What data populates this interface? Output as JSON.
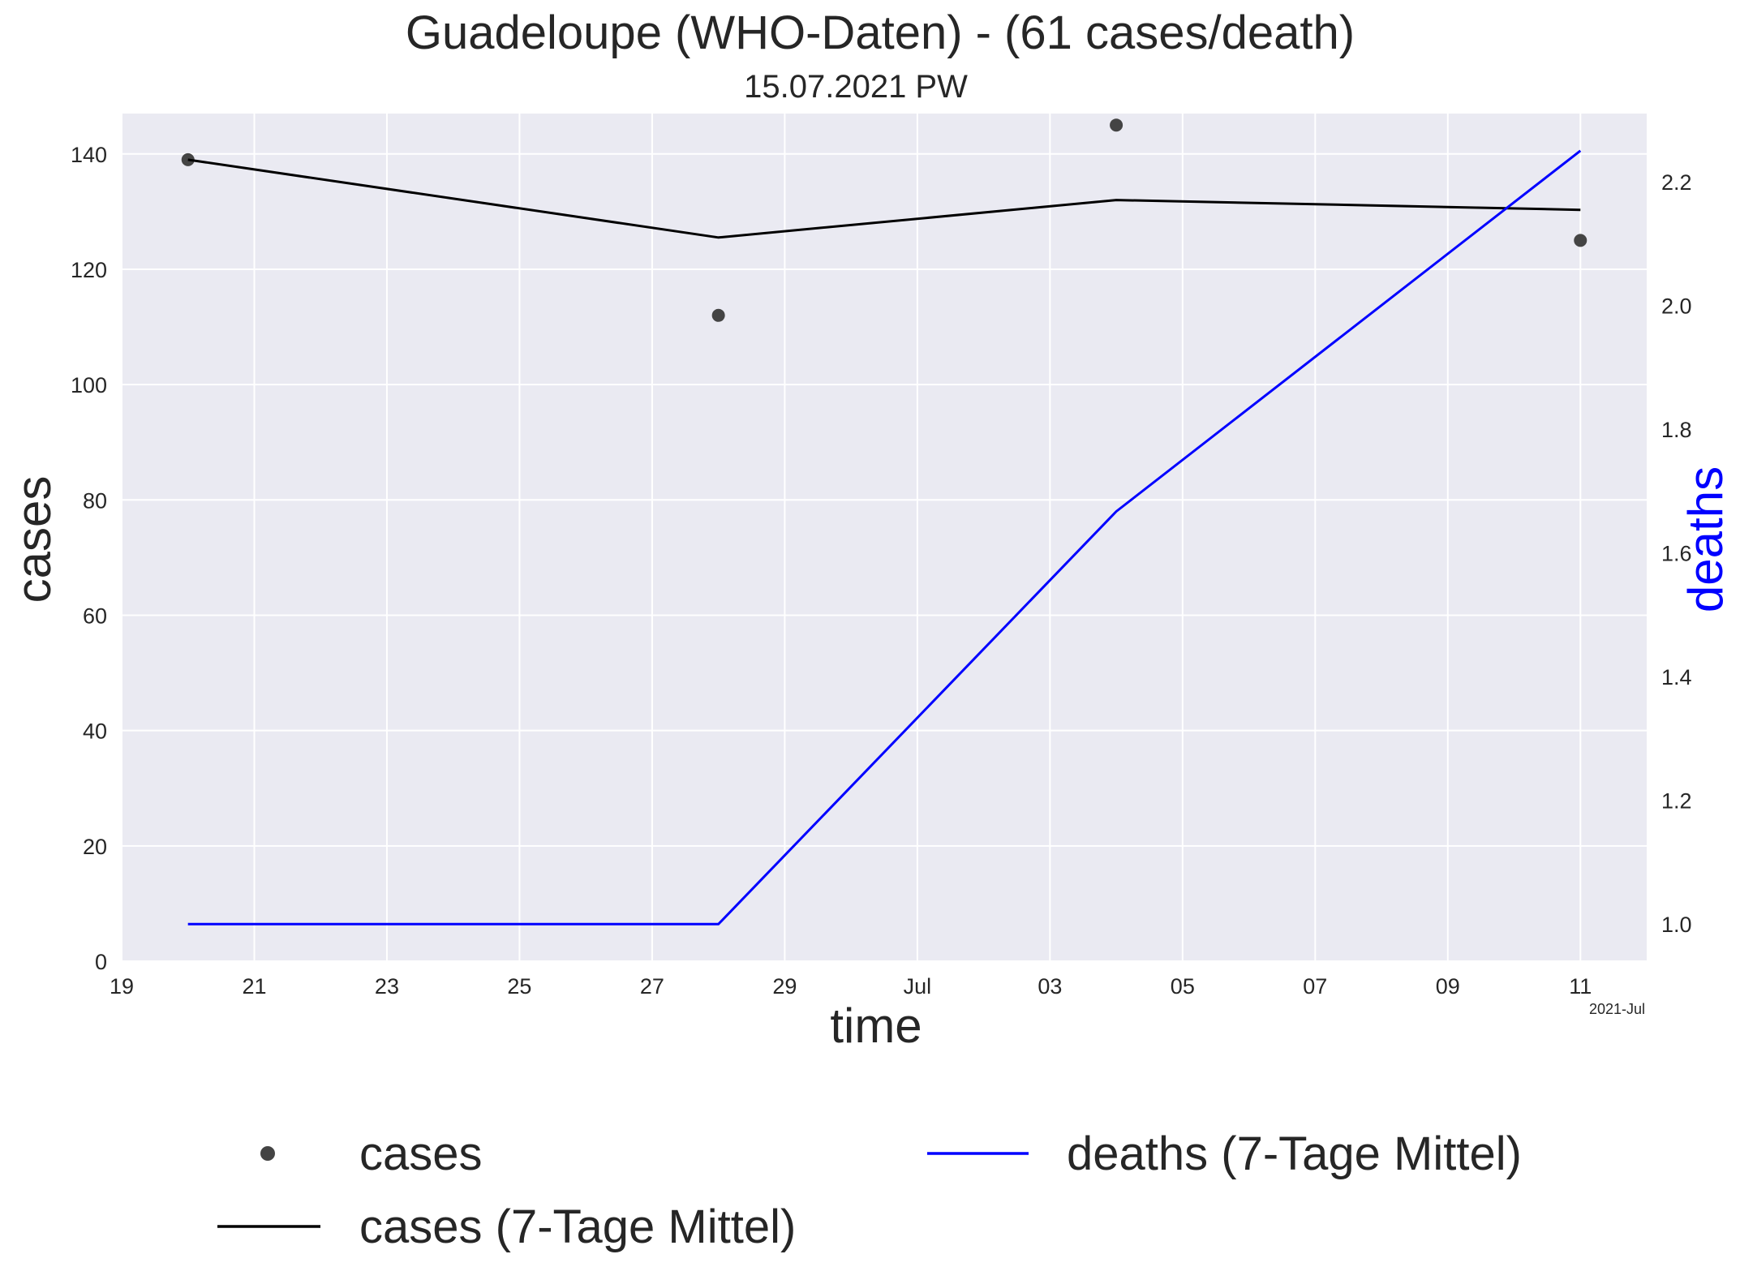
{
  "chart_data": {
    "type": "line",
    "title": "Guadeloupe (WHO-Daten) - (61 cases/death)",
    "subtitle": "15.07.2021 PW",
    "xlabel": "time",
    "ylabel": "cases",
    "ylabel_right": "deaths",
    "x_offset_label": "2021-Jul",
    "xlim": [
      "2021-06-19",
      "2021-07-12"
    ],
    "ylim": [
      0,
      147
    ],
    "ylim_right": [
      0.94,
      2.31
    ],
    "x_ticks": [
      {
        "date": "2021-06-19",
        "label": "19"
      },
      {
        "date": "2021-06-21",
        "label": "21"
      },
      {
        "date": "2021-06-23",
        "label": "23"
      },
      {
        "date": "2021-06-25",
        "label": "25"
      },
      {
        "date": "2021-06-27",
        "label": "27"
      },
      {
        "date": "2021-06-29",
        "label": "29"
      },
      {
        "date": "2021-07-01",
        "label": "Jul"
      },
      {
        "date": "2021-07-03",
        "label": "03"
      },
      {
        "date": "2021-07-05",
        "label": "05"
      },
      {
        "date": "2021-07-07",
        "label": "07"
      },
      {
        "date": "2021-07-09",
        "label": "09"
      },
      {
        "date": "2021-07-11",
        "label": "11"
      }
    ],
    "y_ticks": [
      0,
      20,
      40,
      60,
      80,
      100,
      120,
      140
    ],
    "y_ticks_right": [
      1.0,
      1.2,
      1.4,
      1.6,
      1.8,
      2.0,
      2.2
    ],
    "grid": true,
    "legend_position": "bottom",
    "series": [
      {
        "name": "cases",
        "style": "scatter",
        "color": "#444444",
        "axis": "left",
        "points": [
          {
            "x": "2021-06-20",
            "y": 139
          },
          {
            "x": "2021-06-28",
            "y": 112
          },
          {
            "x": "2021-07-04",
            "y": 145
          },
          {
            "x": "2021-07-11",
            "y": 125
          }
        ]
      },
      {
        "name": "cases (7-Tage Mittel)",
        "style": "line",
        "color": "#000000",
        "axis": "left",
        "points": [
          {
            "x": "2021-06-20",
            "y": 139
          },
          {
            "x": "2021-06-28",
            "y": 125.5
          },
          {
            "x": "2021-07-04",
            "y": 132
          },
          {
            "x": "2021-07-11",
            "y": 130.3
          }
        ]
      },
      {
        "name": "deaths (7-Tage Mittel)",
        "style": "line",
        "color": "#0000ff",
        "axis": "right",
        "points": [
          {
            "x": "2021-06-20",
            "y": 1.0
          },
          {
            "x": "2021-06-28",
            "y": 1.0
          },
          {
            "x": "2021-07-04",
            "y": 1.667
          },
          {
            "x": "2021-07-11",
            "y": 2.25
          }
        ]
      }
    ],
    "colors": {
      "plot_background": "#eaeaf2",
      "grid": "#ffffff",
      "text": "#262626",
      "deaths_axis_label": "#0000ff"
    }
  }
}
